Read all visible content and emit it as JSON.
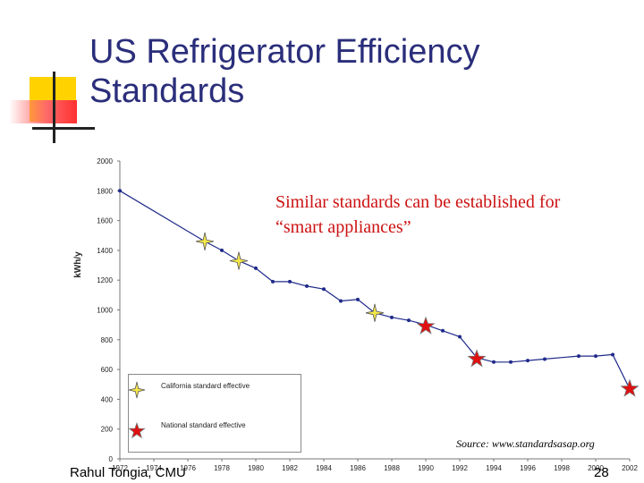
{
  "slide": {
    "title_lines": [
      "US Refrigerator Efficiency",
      "Standards"
    ],
    "callout_lines": [
      "Similar standards can be established for",
      "“smart appliances”"
    ],
    "source": "Source: www.standardsasap.org",
    "author": "Rahul Tongia, CMU",
    "page_number": "28",
    "colors": {
      "title": "#2a2e7a",
      "callout": "#cc1111",
      "line": "#1f2a8a",
      "state_marker": "#f5e84a",
      "national_marker": "#e01010"
    }
  },
  "chart_data": {
    "type": "line",
    "xlabel": "",
    "ylabel": "kWh/y",
    "xlim": [
      1972,
      2002
    ],
    "ylim": [
      0,
      2000
    ],
    "x_ticks": [
      "1972",
      "1974",
      "1976",
      "1978",
      "1980",
      "1982",
      "1984",
      "1986",
      "1988",
      "1990",
      "1992",
      "1994",
      "1996",
      "1998",
      "2000",
      "2002"
    ],
    "y_ticks": [
      "0",
      "200",
      "400",
      "600",
      "800",
      "1000",
      "1200",
      "1400",
      "1600",
      "1800",
      "2000"
    ],
    "series": [
      {
        "x": [
          1972,
          1977,
          1978,
          1979,
          1980,
          1981,
          1982,
          1983,
          1984,
          1985,
          1986,
          1987,
          1988,
          1989,
          1990,
          1991,
          1992,
          1993,
          1994,
          1995,
          1996,
          1997,
          1999,
          2000,
          2001
        ],
        "y": [
          1800,
          1460,
          1400,
          1330,
          1280,
          1190,
          1190,
          1160,
          1140,
          1060,
          1070,
          980,
          950,
          930,
          900,
          860,
          820,
          680,
          650,
          650,
          660,
          670,
          690,
          690,
          700
        ]
      }
    ],
    "tail_segment": {
      "x": [
        2001,
        2002
      ],
      "y": [
        700,
        470
      ]
    },
    "markers": [
      {
        "label": "California standard effective",
        "points": [
          {
            "x": 1977,
            "y": 1460
          },
          {
            "x": 1979,
            "y": 1330
          },
          {
            "x": 1987,
            "y": 980
          }
        ]
      },
      {
        "label": "National standard effective",
        "points": [
          {
            "x": 1990,
            "y": 890
          },
          {
            "x": 1993,
            "y": 670
          },
          {
            "x": 2002,
            "y": 470
          }
        ]
      }
    ],
    "legend_position": "bottom-left",
    "grid": false
  }
}
